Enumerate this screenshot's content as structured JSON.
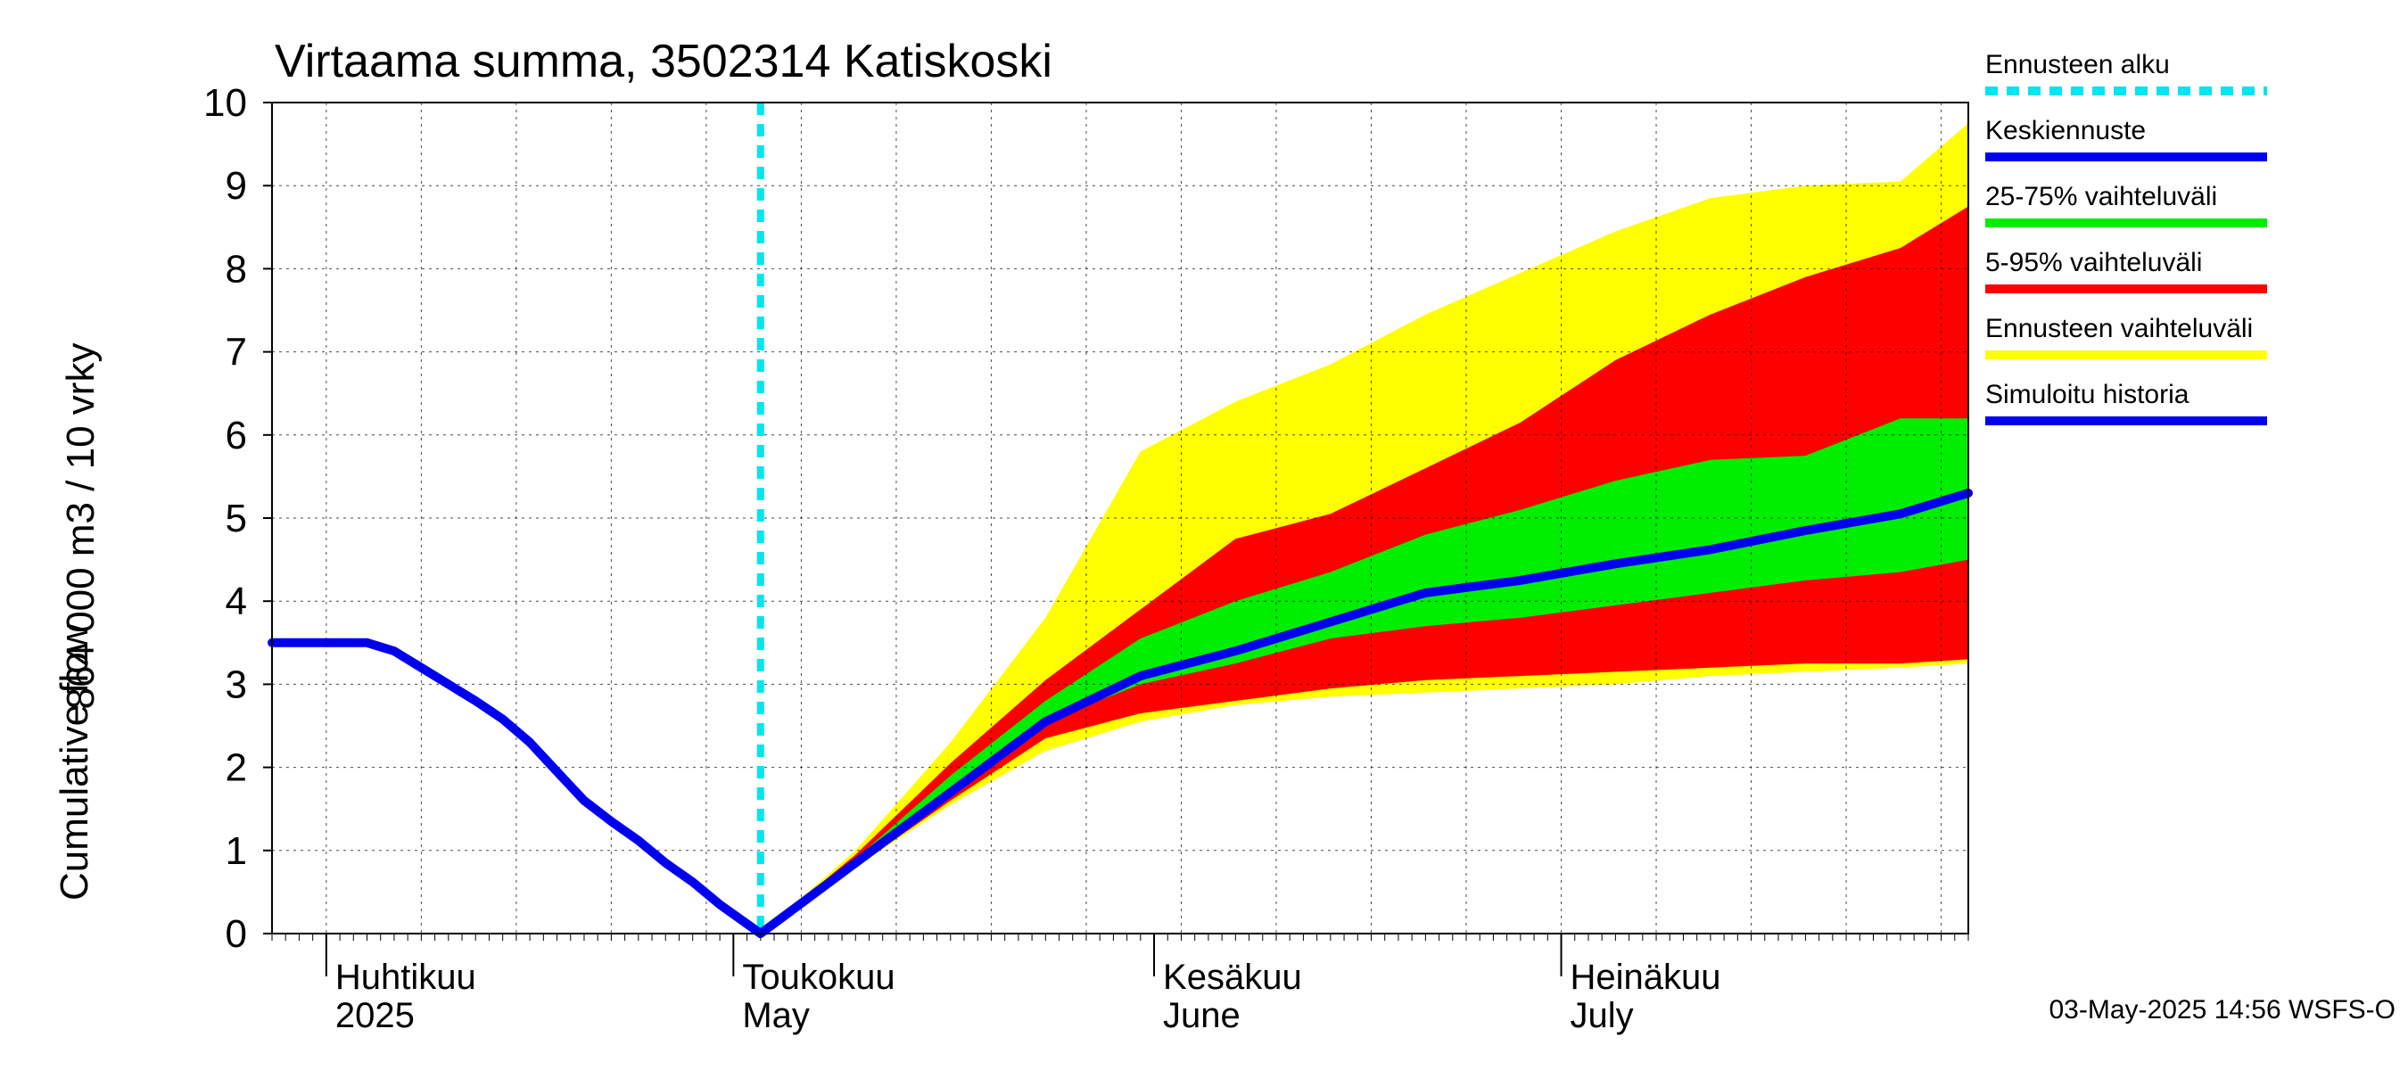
{
  "chart_data": {
    "type": "area",
    "title": "Virtaama summa, 3502314 Katiskoski",
    "ylabel_line1": "864 000 m3 / 10 vrky",
    "ylabel_line2": "Cumulative flow",
    "xlim": [
      "2025-03-28",
      "2025-07-31"
    ],
    "ylim": [
      0,
      10
    ],
    "yticks": [
      0,
      1,
      2,
      3,
      4,
      5,
      6,
      7,
      8,
      9,
      10
    ],
    "grid": true,
    "legend_placement": "right",
    "month_labels": [
      {
        "date": "2025-04-01",
        "fi": "Huhtikuu",
        "en": "2025"
      },
      {
        "date": "2025-05-01",
        "fi": "Toukokuu",
        "en": "May"
      },
      {
        "date": "2025-06-01",
        "fi": "Kesäkuu",
        "en": "June"
      },
      {
        "date": "2025-07-01",
        "fi": "Heinäkuu",
        "en": "July"
      }
    ],
    "forecast_start": "2025-05-03",
    "colors": {
      "forecast_start": "#00e5ee",
      "mean_forecast": "#0000ee",
      "p25_75": "#00ee00",
      "p5_95": "#ff0000",
      "range": "#ffff00",
      "history": "#0000ee"
    },
    "legend": [
      {
        "key": "forecast_start",
        "label": "Ennusteen alku",
        "style": "dashed"
      },
      {
        "key": "mean_forecast",
        "label": "Keskiennuste",
        "style": "solid"
      },
      {
        "key": "p25_75",
        "label": "25-75% vaihteluväli",
        "style": "solid"
      },
      {
        "key": "p5_95",
        "label": "5-95% vaihteluväli",
        "style": "solid"
      },
      {
        "key": "range",
        "label": "Ennusteen vaihteluväli",
        "style": "solid"
      },
      {
        "key": "history",
        "label": "Simuloitu historia",
        "style": "solid"
      }
    ],
    "footer": "03-May-2025 14:56 WSFS-O",
    "history": {
      "x": [
        "2025-03-28",
        "2025-04-04",
        "2025-04-06",
        "2025-04-08",
        "2025-04-10",
        "2025-04-12",
        "2025-04-14",
        "2025-04-16",
        "2025-04-18",
        "2025-04-20",
        "2025-04-22",
        "2025-04-24",
        "2025-04-26",
        "2025-04-28",
        "2025-04-30",
        "2025-05-03"
      ],
      "y": [
        3.5,
        3.5,
        3.4,
        3.2,
        3.0,
        2.8,
        2.58,
        2.3,
        1.95,
        1.6,
        1.35,
        1.12,
        0.85,
        0.62,
        0.35,
        0.0
      ]
    },
    "bands": {
      "x": [
        "2025-05-03",
        "2025-05-10",
        "2025-05-17",
        "2025-05-24",
        "2025-05-31",
        "2025-06-07",
        "2025-06-14",
        "2025-06-21",
        "2025-06-28",
        "2025-07-05",
        "2025-07-12",
        "2025-07-19",
        "2025-07-26",
        "2025-07-31"
      ],
      "range_upper": [
        0.0,
        1.0,
        2.3,
        3.8,
        5.8,
        6.4,
        6.85,
        7.45,
        7.95,
        8.45,
        8.85,
        9.0,
        9.05,
        9.75
      ],
      "p5_95_upper": [
        0.0,
        0.95,
        2.05,
        3.05,
        3.9,
        4.75,
        5.05,
        5.6,
        6.15,
        6.9,
        7.45,
        7.9,
        8.25,
        8.75
      ],
      "p25_75_upper": [
        0.0,
        0.9,
        1.9,
        2.8,
        3.55,
        4.0,
        4.35,
        4.8,
        5.1,
        5.45,
        5.7,
        5.75,
        6.2,
        6.2
      ],
      "p25_75_lower": [
        0.0,
        0.85,
        1.75,
        2.55,
        3.0,
        3.25,
        3.55,
        3.7,
        3.8,
        3.95,
        4.1,
        4.25,
        4.35,
        4.5
      ],
      "p5_95_lower": [
        0.0,
        0.8,
        1.6,
        2.35,
        2.65,
        2.8,
        2.95,
        3.05,
        3.1,
        3.15,
        3.2,
        3.25,
        3.25,
        3.3
      ],
      "range_lower": [
        0.0,
        0.8,
        1.55,
        2.2,
        2.55,
        2.75,
        2.85,
        2.9,
        2.95,
        3.0,
        3.1,
        3.15,
        3.2,
        3.25
      ]
    },
    "mean_forecast": {
      "x": [
        "2025-05-03",
        "2025-05-10",
        "2025-05-17",
        "2025-05-24",
        "2025-05-31",
        "2025-06-07",
        "2025-06-14",
        "2025-06-21",
        "2025-06-28",
        "2025-07-05",
        "2025-07-12",
        "2025-07-19",
        "2025-07-26",
        "2025-07-31"
      ],
      "y": [
        0.0,
        0.85,
        1.7,
        2.55,
        3.1,
        3.4,
        3.75,
        4.1,
        4.25,
        4.45,
        4.62,
        4.85,
        5.05,
        5.3
      ]
    }
  }
}
